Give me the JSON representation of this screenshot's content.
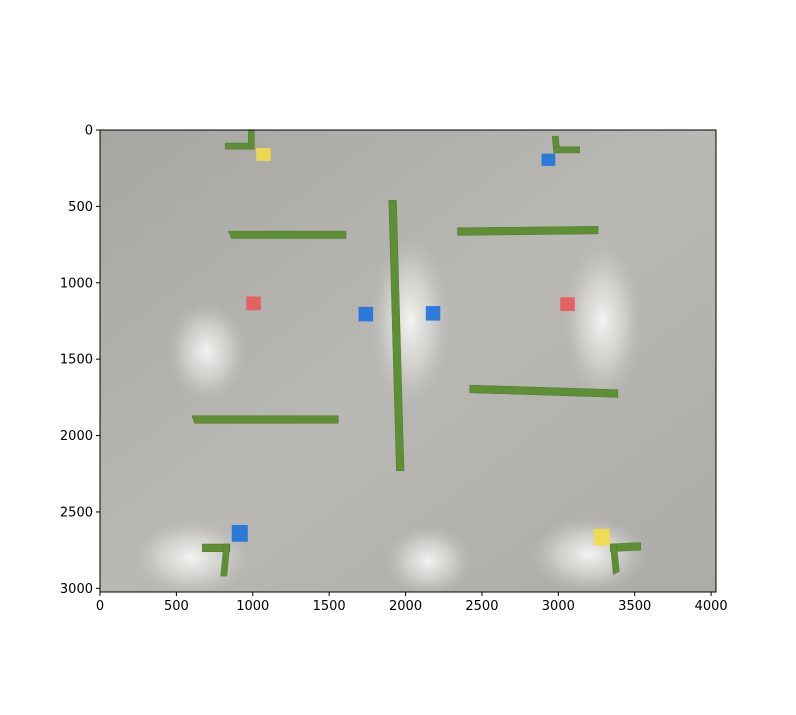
{
  "image": {
    "description_hidden": "",
    "colors": {
      "floor_base": "#b9b8b4",
      "floor_dark": "#9c9b97",
      "glare": "#f2f2f0",
      "tape_green": "#5f8f35",
      "tape_green_dark": "#4f7a2b",
      "marker_red": "#e65a5a",
      "marker_blue": "#1f74db",
      "marker_yellow": "#f2dc4a"
    }
  },
  "axes": {
    "x_ticks": [
      "0",
      "500",
      "1000",
      "1500",
      "2000",
      "2500",
      "3000",
      "3500",
      "4000"
    ],
    "y_ticks": [
      "0",
      "500",
      "1000",
      "1500",
      "2000",
      "2500",
      "3000"
    ],
    "x_tick_values": [
      0,
      500,
      1000,
      1500,
      2000,
      2500,
      3000,
      3500,
      4000
    ],
    "y_tick_values": [
      0,
      500,
      1000,
      1500,
      2000,
      2500,
      3000
    ],
    "xlim": [
      0,
      4032
    ],
    "ylim_top_to_bottom": [
      0,
      3024
    ]
  },
  "tape_strips": [
    {
      "name": "tape-left-upper",
      "points": [
        [
          840,
          662
        ],
        [
          1610,
          662
        ],
        [
          1610,
          710
        ],
        [
          860,
          710
        ]
      ]
    },
    {
      "name": "tape-left-lower",
      "points": [
        [
          600,
          1870
        ],
        [
          1560,
          1870
        ],
        [
          1560,
          1920
        ],
        [
          620,
          1920
        ]
      ]
    },
    {
      "name": "tape-right-upper",
      "points": [
        [
          2340,
          640
        ],
        [
          3260,
          630
        ],
        [
          3260,
          680
        ],
        [
          2340,
          690
        ]
      ]
    },
    {
      "name": "tape-right-lower",
      "points": [
        [
          2420,
          1670
        ],
        [
          3390,
          1700
        ],
        [
          3390,
          1750
        ],
        [
          2420,
          1720
        ]
      ]
    },
    {
      "name": "tape-center-vertical",
      "points": [
        [
          1890,
          460
        ],
        [
          1940,
          460
        ],
        [
          1990,
          2230
        ],
        [
          1940,
          2230
        ]
      ]
    },
    {
      "name": "tape-corner-tl-h",
      "points": [
        [
          820,
          85
        ],
        [
          1010,
          85
        ],
        [
          1010,
          125
        ],
        [
          820,
          125
        ]
      ]
    },
    {
      "name": "tape-corner-tl-v",
      "points": [
        [
          970,
          0
        ],
        [
          1010,
          0
        ],
        [
          1010,
          125
        ],
        [
          970,
          125
        ]
      ]
    },
    {
      "name": "tape-corner-tr-v",
      "points": [
        [
          2960,
          40
        ],
        [
          3000,
          40
        ],
        [
          3010,
          150
        ],
        [
          2970,
          150
        ]
      ]
    },
    {
      "name": "tape-corner-tr-h",
      "points": [
        [
          2970,
          110
        ],
        [
          3140,
          110
        ],
        [
          3140,
          150
        ],
        [
          2970,
          150
        ]
      ]
    },
    {
      "name": "tape-corner-bl-h",
      "points": [
        [
          670,
          2710
        ],
        [
          850,
          2710
        ],
        [
          850,
          2760
        ],
        [
          670,
          2760
        ]
      ]
    },
    {
      "name": "tape-corner-bl-v",
      "points": [
        [
          810,
          2710
        ],
        [
          850,
          2710
        ],
        [
          830,
          2920
        ],
        [
          790,
          2920
        ]
      ]
    },
    {
      "name": "tape-corner-br-h",
      "points": [
        [
          3340,
          2710
        ],
        [
          3540,
          2700
        ],
        [
          3540,
          2750
        ],
        [
          3340,
          2760
        ]
      ]
    },
    {
      "name": "tape-corner-br-v",
      "points": [
        [
          3340,
          2710
        ],
        [
          3380,
          2710
        ],
        [
          3400,
          2890
        ],
        [
          3360,
          2910
        ]
      ]
    }
  ],
  "markers": [
    {
      "name": "marker-red-left",
      "color": "marker_red",
      "cx": 1005,
      "cy": 1135,
      "w": 95,
      "h": 90
    },
    {
      "name": "marker-red-right",
      "color": "marker_red",
      "cx": 3060,
      "cy": 1140,
      "w": 95,
      "h": 90
    },
    {
      "name": "marker-blue-center-left",
      "color": "marker_blue",
      "cx": 1740,
      "cy": 1205,
      "w": 95,
      "h": 95
    },
    {
      "name": "marker-blue-center-right",
      "color": "marker_blue",
      "cx": 2180,
      "cy": 1200,
      "w": 95,
      "h": 95
    },
    {
      "name": "marker-blue-top-right",
      "color": "marker_blue",
      "cx": 2935,
      "cy": 195,
      "w": 90,
      "h": 80
    },
    {
      "name": "marker-yellow-top-left",
      "color": "marker_yellow",
      "cx": 1070,
      "cy": 160,
      "w": 95,
      "h": 85
    },
    {
      "name": "marker-blue-bottom-left",
      "color": "marker_blue",
      "cx": 915,
      "cy": 2640,
      "w": 105,
      "h": 110
    },
    {
      "name": "marker-yellow-bottom-right",
      "color": "marker_yellow",
      "cx": 3285,
      "cy": 2665,
      "w": 105,
      "h": 110
    }
  ],
  "glare_spots": [
    {
      "name": "glare-left",
      "cx": 700,
      "cy": 1450,
      "rx": 260,
      "ry": 330
    },
    {
      "name": "glare-center",
      "cx": 2030,
      "cy": 1250,
      "rx": 260,
      "ry": 560
    },
    {
      "name": "glare-right",
      "cx": 3290,
      "cy": 1250,
      "rx": 260,
      "ry": 520
    },
    {
      "name": "glare-bottom-left",
      "cx": 600,
      "cy": 2800,
      "rx": 380,
      "ry": 250
    },
    {
      "name": "glare-bottom-center",
      "cx": 2150,
      "cy": 2820,
      "rx": 280,
      "ry": 230
    },
    {
      "name": "glare-bottom-right",
      "cx": 3200,
      "cy": 2780,
      "rx": 380,
      "ry": 250
    }
  ]
}
